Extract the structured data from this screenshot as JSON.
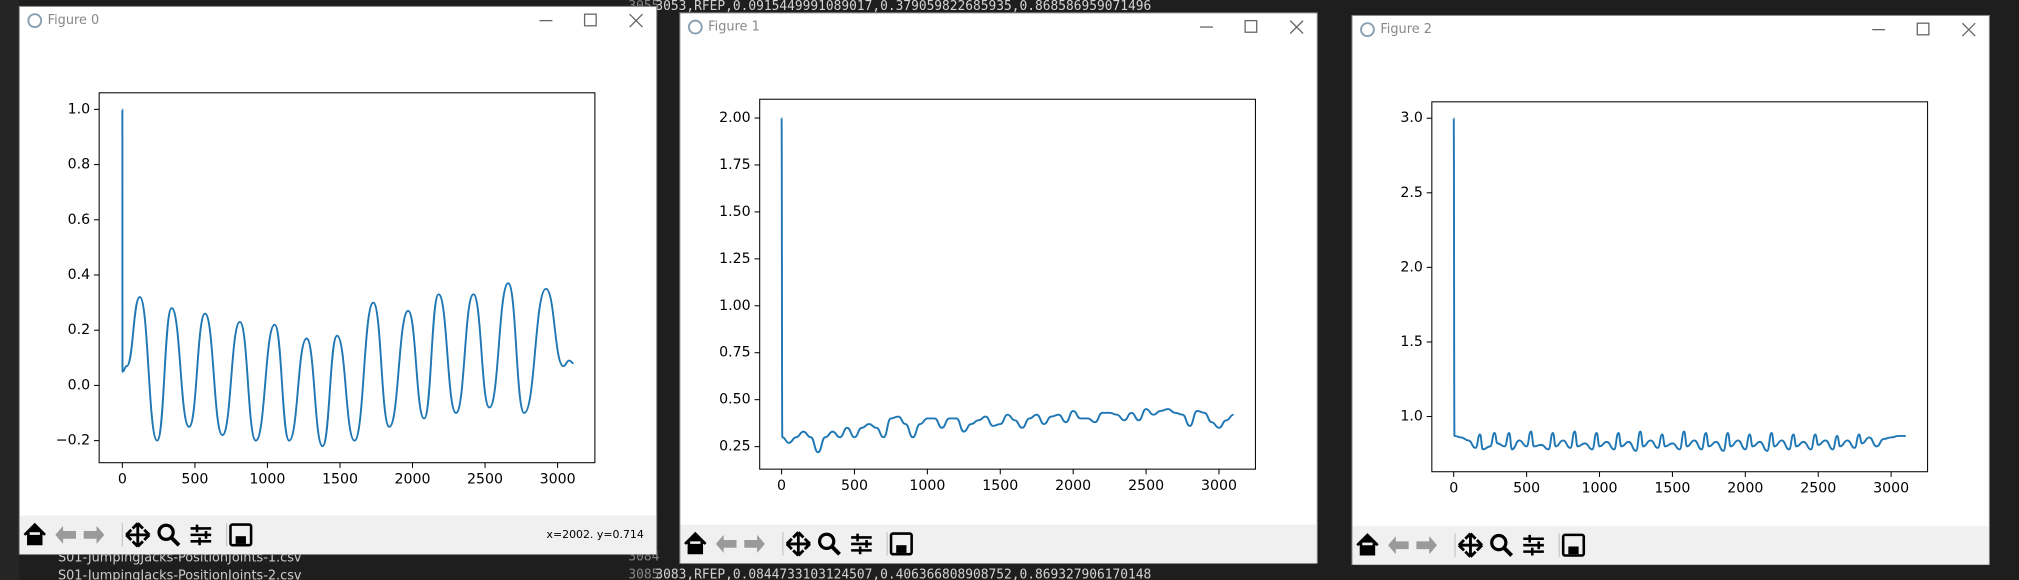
{
  "editor": {
    "line_numbers": [
      "3055",
      "3084",
      "3085"
    ],
    "lines": [
      "3053,RFEP,0.0915449991089017,0.379059822685935,0.868586959071496",
      "3083,RFEP,0.0844733103124507,0.406366808908752,0.869327906170148"
    ],
    "files": [
      "S01-JumpingJacks-PositionJoints-1.csv",
      "S01-JumpingJacks-PositionJoints-2.csv"
    ]
  },
  "windows": [
    {
      "title": "Figure 0",
      "status": "x=2002. y=0.714"
    },
    {
      "title": "Figure 1"
    },
    {
      "title": "Figure 2"
    }
  ],
  "chart_data": [
    {
      "type": "line",
      "xlim": [
        -160,
        3257
      ],
      "ylim": [
        -0.28,
        1.06
      ],
      "xticks": [
        0,
        500,
        1000,
        1500,
        2000,
        2500,
        3000
      ],
      "yticks": [
        {
          "value": -0.2,
          "label": "−0.2"
        },
        {
          "value": 0,
          "label": "0.0"
        },
        0.2,
        0.4,
        0.6,
        0.8,
        {
          "value": 1,
          "label": "1.0"
        }
      ],
      "series": [
        {
          "color": "#1f77b4",
          "x": [
            0,
            1,
            30,
            120,
            240,
            340,
            460,
            570,
            690,
            810,
            920,
            1050,
            1150,
            1270,
            1380,
            1480,
            1600,
            1730,
            1840,
            1970,
            2080,
            2180,
            2300,
            2420,
            2530,
            2660,
            2770,
            2920,
            3040,
            3080,
            3110
          ],
          "values": [
            1,
            0.05,
            0.07,
            0.32,
            -0.2,
            0.28,
            -0.15,
            0.26,
            -0.18,
            0.23,
            -0.2,
            0.22,
            -0.2,
            0.17,
            -0.22,
            0.18,
            -0.2,
            0.3,
            -0.15,
            0.27,
            -0.12,
            0.33,
            -0.1,
            0.33,
            -0.08,
            0.37,
            -0.1,
            0.35,
            0.07,
            0.09,
            0.08
          ]
        }
      ]
    },
    {
      "type": "line",
      "xlim": [
        -150,
        3250
      ],
      "ylim": [
        0.13,
        2.1
      ],
      "xticks": [
        0,
        500,
        1000,
        1500,
        2000,
        2500,
        3000
      ],
      "yticks": [
        0.25,
        {
          "value": 0.5,
          "label": "0.50"
        },
        0.75,
        {
          "value": 1,
          "label": "1.00"
        },
        1.25,
        {
          "value": 1.5,
          "label": "1.50"
        },
        1.75,
        {
          "value": 2,
          "label": "2.00"
        }
      ],
      "series": [
        {
          "color": "#1f77b4",
          "x": [
            0,
            5,
            50,
            100,
            150,
            200,
            250,
            300,
            350,
            400,
            450,
            500,
            550,
            600,
            650,
            700,
            750,
            800,
            850,
            900,
            950,
            1000,
            1050,
            1100,
            1150,
            1200,
            1250,
            1300,
            1350,
            1400,
            1450,
            1500,
            1550,
            1600,
            1650,
            1700,
            1750,
            1800,
            1850,
            1900,
            1950,
            2000,
            2050,
            2100,
            2150,
            2200,
            2250,
            2300,
            2350,
            2400,
            2450,
            2500,
            2550,
            2600,
            2650,
            2700,
            2750,
            2800,
            2850,
            2900,
            2950,
            3000,
            3050,
            3100
          ],
          "values": [
            2,
            0.3,
            0.27,
            0.3,
            0.33,
            0.3,
            0.22,
            0.3,
            0.33,
            0.3,
            0.35,
            0.3,
            0.35,
            0.37,
            0.35,
            0.3,
            0.4,
            0.41,
            0.37,
            0.3,
            0.37,
            0.4,
            0.4,
            0.35,
            0.4,
            0.4,
            0.33,
            0.37,
            0.39,
            0.41,
            0.36,
            0.37,
            0.42,
            0.39,
            0.35,
            0.4,
            0.42,
            0.37,
            0.41,
            0.42,
            0.38,
            0.44,
            0.4,
            0.4,
            0.38,
            0.43,
            0.43,
            0.42,
            0.39,
            0.43,
            0.39,
            0.45,
            0.42,
            0.44,
            0.45,
            0.43,
            0.42,
            0.36,
            0.44,
            0.43,
            0.38,
            0.35,
            0.39,
            0.42
          ]
        }
      ]
    },
    {
      "type": "line",
      "xlim": [
        -150,
        3250
      ],
      "ylim": [
        0.63,
        3.11
      ],
      "xticks": [
        0,
        500,
        1000,
        1500,
        2000,
        2500,
        3000
      ],
      "yticks": [
        {
          "value": 1,
          "label": "1.0"
        },
        1.5,
        {
          "value": 2,
          "label": "2.0"
        },
        2.5,
        {
          "value": 3,
          "label": "3.0"
        }
      ],
      "series": [
        {
          "color": "#1f77b4",
          "x": [
            0,
            5,
            50,
            100,
            150,
            180,
            200,
            250,
            280,
            300,
            350,
            380,
            400,
            450,
            500,
            530,
            550,
            600,
            650,
            680,
            700,
            750,
            800,
            830,
            850,
            900,
            950,
            980,
            1000,
            1050,
            1100,
            1130,
            1150,
            1200,
            1250,
            1280,
            1300,
            1350,
            1400,
            1430,
            1450,
            1500,
            1550,
            1580,
            1600,
            1650,
            1700,
            1730,
            1750,
            1800,
            1850,
            1880,
            1900,
            1950,
            2000,
            2030,
            2050,
            2100,
            2150,
            2180,
            2200,
            2250,
            2300,
            2330,
            2350,
            2400,
            2450,
            2480,
            2500,
            2550,
            2600,
            2630,
            2650,
            2700,
            2750,
            2780,
            2800,
            2850,
            2900,
            2950,
            3000,
            3050,
            3100
          ],
          "values": [
            3,
            0.87,
            0.86,
            0.84,
            0.79,
            0.88,
            0.78,
            0.8,
            0.89,
            0.82,
            0.8,
            0.89,
            0.78,
            0.84,
            0.8,
            0.9,
            0.8,
            0.81,
            0.78,
            0.89,
            0.8,
            0.84,
            0.79,
            0.9,
            0.8,
            0.82,
            0.78,
            0.89,
            0.8,
            0.83,
            0.78,
            0.89,
            0.8,
            0.83,
            0.77,
            0.9,
            0.8,
            0.84,
            0.79,
            0.88,
            0.8,
            0.82,
            0.78,
            0.9,
            0.8,
            0.84,
            0.78,
            0.89,
            0.8,
            0.83,
            0.77,
            0.89,
            0.8,
            0.84,
            0.78,
            0.88,
            0.8,
            0.83,
            0.77,
            0.89,
            0.8,
            0.84,
            0.78,
            0.88,
            0.8,
            0.83,
            0.78,
            0.88,
            0.81,
            0.84,
            0.78,
            0.87,
            0.8,
            0.84,
            0.79,
            0.88,
            0.82,
            0.86,
            0.8,
            0.85,
            0.86,
            0.87,
            0.87
          ]
        }
      ]
    }
  ]
}
